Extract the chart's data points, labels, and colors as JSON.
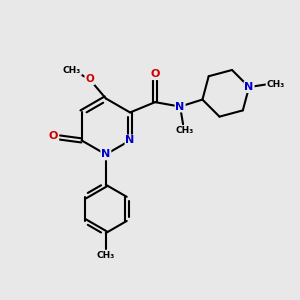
{
  "bg_color": "#e8e8e8",
  "bond_color": "#000000",
  "nitrogen_color": "#0000cc",
  "oxygen_color": "#cc0000",
  "carbon_color": "#000000",
  "line_width": 1.5,
  "fig_width": 3.0,
  "fig_height": 3.0,
  "dpi": 100,
  "xlim": [
    0,
    10
  ],
  "ylim": [
    0,
    10
  ]
}
